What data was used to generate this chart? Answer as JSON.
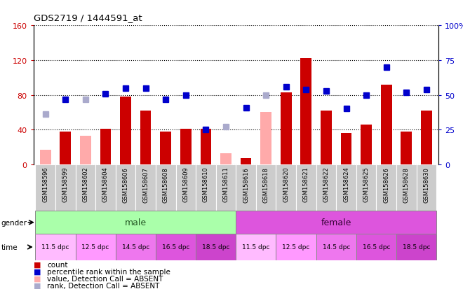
{
  "title": "GDS2719 / 1444591_at",
  "samples": [
    "GSM158596",
    "GSM158599",
    "GSM158602",
    "GSM158604",
    "GSM158606",
    "GSM158607",
    "GSM158608",
    "GSM158609",
    "GSM158610",
    "GSM158611",
    "GSM158616",
    "GSM158618",
    "GSM158620",
    "GSM158621",
    "GSM158622",
    "GSM158624",
    "GSM158625",
    "GSM158626",
    "GSM158628",
    "GSM158630"
  ],
  "absent": [
    true,
    false,
    true,
    false,
    false,
    false,
    false,
    false,
    false,
    true,
    false,
    true,
    false,
    false,
    false,
    false,
    false,
    false,
    false,
    false
  ],
  "values": [
    17,
    38,
    33,
    41,
    78,
    62,
    38,
    41,
    41,
    13,
    7,
    60,
    83,
    122,
    62,
    36,
    46,
    92,
    38,
    62
  ],
  "ranks_pct": [
    36,
    47,
    47,
    51,
    55,
    55,
    47,
    50,
    25,
    27,
    41,
    50,
    56,
    54,
    53,
    40,
    50,
    70,
    52,
    54
  ],
  "time_labels": [
    "11.5 dpc",
    "12.5 dpc",
    "14.5 dpc",
    "16.5 dpc",
    "18.5 dpc",
    "11.5 dpc",
    "12.5 dpc",
    "14.5 dpc",
    "16.5 dpc",
    "18.5 dpc"
  ],
  "ylim_left": [
    0,
    160
  ],
  "ylim_right": [
    0,
    100
  ],
  "yticks_left": [
    0,
    40,
    80,
    120,
    160
  ],
  "ytick_labels_left": [
    "0",
    "40",
    "80",
    "120",
    "160"
  ],
  "ytick_labels_right": [
    "0",
    "25",
    "50",
    "75",
    "100%"
  ],
  "yticks_right": [
    0,
    25,
    50,
    75,
    100
  ],
  "color_bar_present": "#cc0000",
  "color_bar_absent": "#ffaaaa",
  "color_rank_present": "#0000cc",
  "color_rank_absent": "#aaaacc",
  "color_gender_male": "#aaffaa",
  "color_gender_female": "#dd55dd",
  "color_sample_bg": "#cccccc",
  "time_colors": {
    "11.5 dpc": "#ffbbff",
    "12.5 dpc": "#ff99ff",
    "14.5 dpc": "#ee77ee",
    "16.5 dpc": "#dd55dd",
    "18.5 dpc": "#cc44cc"
  }
}
